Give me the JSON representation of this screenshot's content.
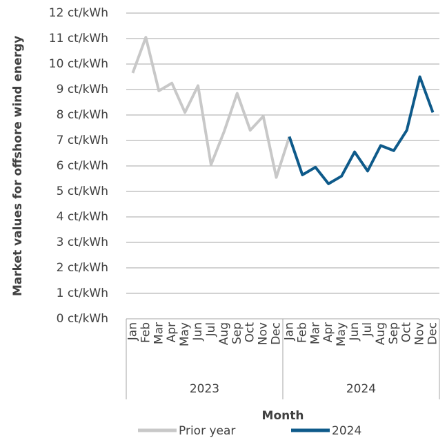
{
  "chart_data": {
    "type": "line",
    "y_label": "Market values for offshore wind energy",
    "x_label": "Month",
    "categories": [
      "Jan",
      "Feb",
      "Mar",
      "Apr",
      "May",
      "Jun",
      "Jul",
      "Aug",
      "Sep",
      "Oct",
      "Nov",
      "Dec",
      "Jan",
      "Feb",
      "Mar",
      "Apr",
      "May",
      "Jun",
      "Jul",
      "Aug",
      "Sep",
      "Oct",
      "Nov",
      "Dec"
    ],
    "groups": [
      "2023",
      "2024"
    ],
    "series": [
      {
        "name": "Prior year",
        "color": "#c8c8c8",
        "values": [
          9.65,
          11.05,
          8.95,
          9.25,
          8.1,
          9.15,
          6.05,
          7.35,
          8.85,
          7.4,
          7.95,
          5.55,
          7.15,
          null,
          null,
          null,
          null,
          null,
          null,
          null,
          null,
          null,
          null,
          null
        ]
      },
      {
        "name": "2024",
        "color": "#0e5a8a",
        "values": [
          null,
          null,
          null,
          null,
          null,
          null,
          null,
          null,
          null,
          null,
          null,
          null,
          7.15,
          5.65,
          5.95,
          5.3,
          5.6,
          6.55,
          5.8,
          6.8,
          6.6,
          7.4,
          9.5,
          8.1
        ]
      }
    ],
    "ylim": [
      0,
      12
    ],
    "yticks": [
      {
        "value": 0,
        "label": "0 ct/kWh"
      },
      {
        "value": 1,
        "label": "1 ct/kWh"
      },
      {
        "value": 2,
        "label": "2 ct/kWh"
      },
      {
        "value": 3,
        "label": "3 ct/kWh"
      },
      {
        "value": 4,
        "label": "4 ct/kWh"
      },
      {
        "value": 5,
        "label": "5 ct/kWh"
      },
      {
        "value": 6,
        "label": "6 ct/kWh"
      },
      {
        "value": 7,
        "label": "7 ct/kWh"
      },
      {
        "value": 8,
        "label": "8 ct/kWh"
      },
      {
        "value": 9,
        "label": "9 ct/kWh"
      },
      {
        "value": 10,
        "label": "10 ct/kWh"
      },
      {
        "value": 11,
        "label": "11 ct/kWh"
      },
      {
        "value": 12,
        "label": "12 ct/kWh"
      }
    ],
    "grid": true
  }
}
